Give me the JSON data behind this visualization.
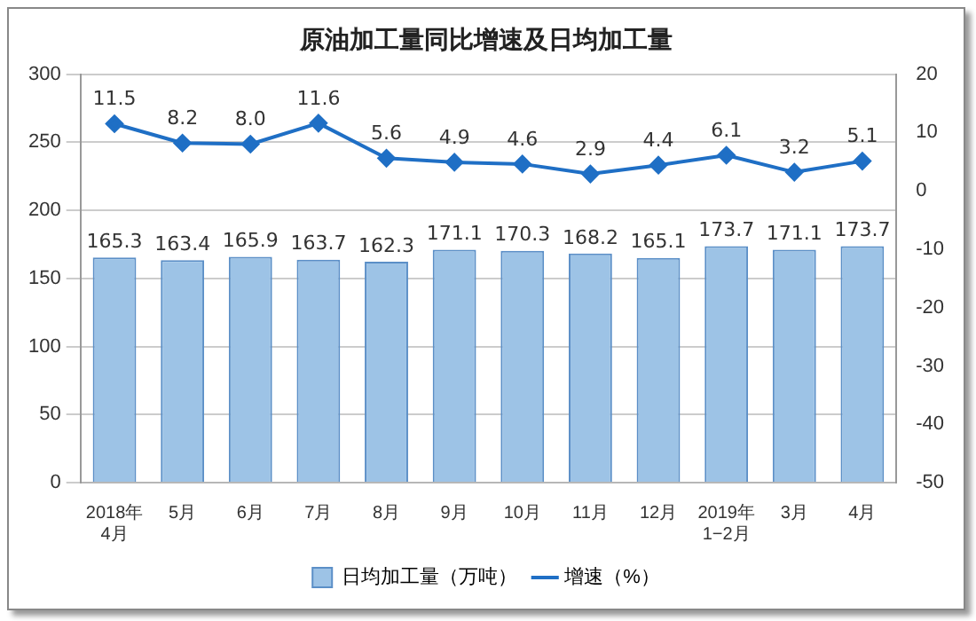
{
  "chart_data": {
    "type": "bar",
    "title": "原油加工量同比增速及日均加工量",
    "categories": [
      "2018年\n4月",
      "5月",
      "6月",
      "7月",
      "8月",
      "9月",
      "10月",
      "11月",
      "12月",
      "2019年\n1−2月",
      "3月",
      "4月"
    ],
    "series": [
      {
        "name": "日均加工量（万吨）",
        "color": "#9dc3e6",
        "values": [
          165.3,
          163.4,
          165.9,
          163.7,
          162.3,
          171.1,
          170.3,
          168.2,
          165.1,
          173.7,
          171.1,
          173.7
        ],
        "value_labels": [
          "165.3",
          "163.4",
          "165.9",
          "163.7",
          "162.3",
          "171.1",
          "170.3",
          "168.2",
          "165.1",
          "173.7",
          "171.1",
          "173.7"
        ]
      },
      {
        "name": "增速（%）",
        "type": "line",
        "axis": "y2",
        "color": "#1f6fc5",
        "marker": "diamond",
        "values": [
          11.5,
          8.2,
          8.0,
          11.6,
          5.6,
          4.9,
          4.6,
          2.9,
          4.4,
          6.1,
          3.2,
          5.1
        ],
        "value_labels": [
          "11.5",
          "8.2",
          "8.0",
          "11.6",
          "5.6",
          "4.9",
          "4.6",
          "2.9",
          "4.4",
          "6.1",
          "3.2",
          "5.1"
        ]
      }
    ],
    "ylim": [
      0,
      300
    ],
    "yticks": [
      0,
      50,
      100,
      150,
      200,
      250,
      300
    ],
    "y2lim": [
      -50,
      20
    ],
    "y2ticks": [
      -50,
      -40,
      -30,
      -20,
      -10,
      0,
      10,
      20
    ],
    "grid": "y",
    "legend": "bottom"
  }
}
